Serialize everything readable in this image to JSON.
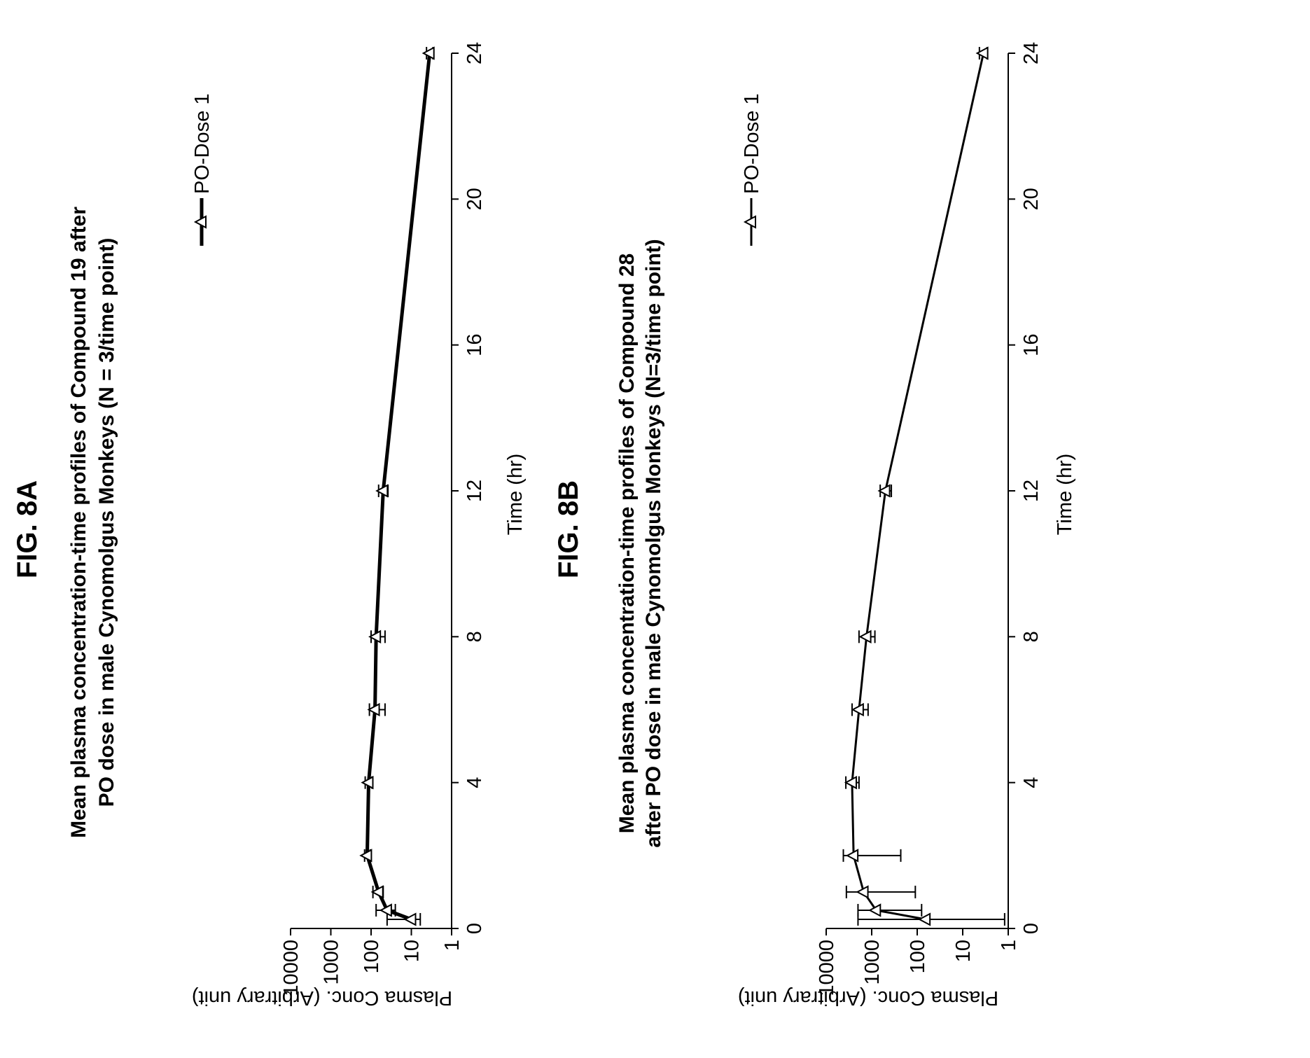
{
  "chart_data": [
    {
      "type": "line",
      "figure_label": "FIG. 8A",
      "title_lines": [
        "Mean plasma concentration-time profiles of Compound 19 after",
        "PO dose  in male Cynomolgus Monkeys (N = 3/time point)"
      ],
      "xlabel": "Time (hr)",
      "ylabel": "Plasma Conc. (Arbitrary unit)",
      "xlim": [
        0,
        24
      ],
      "xticks": [
        "0",
        "4",
        "8",
        "12",
        "16",
        "20",
        "24"
      ],
      "ylim": [
        1,
        10000
      ],
      "yscale": "log",
      "yticks": [
        "1",
        "10",
        "100",
        "1000",
        "10000"
      ],
      "legend_position": "top-right",
      "series": [
        {
          "name": "PO-Dose 1",
          "color": "#000000",
          "marker": "triangle-open",
          "x": [
            0.25,
            0.5,
            1,
            2,
            4,
            6,
            8,
            12,
            24
          ],
          "y": [
            10,
            40,
            65,
            125,
            115,
            80,
            75,
            50,
            3.5
          ],
          "err_low": [
            6,
            25,
            50,
            105,
            95,
            45,
            45,
            38,
            2.9
          ],
          "err_high": [
            40,
            75,
            90,
            145,
            140,
            110,
            100,
            65,
            4.2
          ]
        }
      ]
    },
    {
      "type": "line",
      "figure_label": "FIG. 8B",
      "title_lines": [
        "Mean plasma concentration-time profiles of Compound 28",
        "after PO dose  in male Cynomolgus Monkeys (N=3/time point)"
      ],
      "xlabel": "Time (hr)",
      "ylabel": "Plasma Conc. (Arbitrary unit)",
      "xlim": [
        0,
        24
      ],
      "xticks": [
        "0",
        "4",
        "8",
        "12",
        "16",
        "20",
        "24"
      ],
      "ylim": [
        1,
        10000
      ],
      "yscale": "log",
      "yticks": [
        "1",
        "10",
        "100",
        "1000",
        "10000"
      ],
      "legend_position": "top-right",
      "series": [
        {
          "name": "PO-Dose 1",
          "color": "#000000",
          "marker": "triangle-open",
          "x": [
            0.25,
            0.5,
            1,
            2,
            4,
            6,
            8,
            12,
            24
          ],
          "y": [
            65,
            800,
            1500,
            2500,
            2700,
            1900,
            1300,
            500,
            3.5
          ],
          "err_low": [
            1.2,
            80,
            110,
            230,
            1900,
            1200,
            850,
            370,
            2.9
          ],
          "err_high": [
            2000,
            2000,
            3600,
            4200,
            3700,
            2700,
            1900,
            650,
            4.3
          ]
        }
      ]
    }
  ]
}
